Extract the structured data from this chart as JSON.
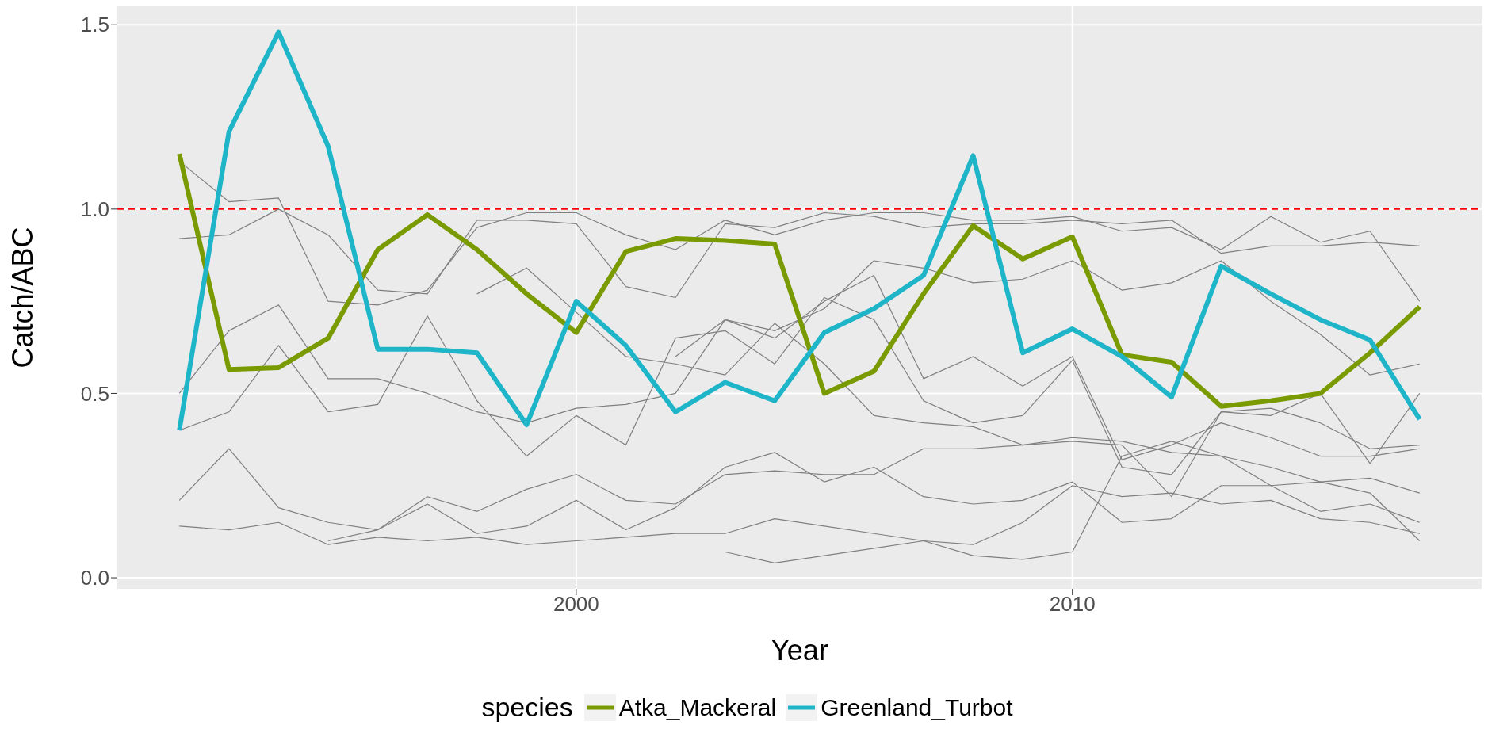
{
  "chart_data": {
    "type": "line",
    "xlabel": "Year",
    "ylabel": "Catch/ABC",
    "legend_title": "species",
    "legend": "bottom",
    "grid": true,
    "marker": "none",
    "x": [
      1992,
      1993,
      1994,
      1995,
      1996,
      1997,
      1998,
      1999,
      2000,
      2001,
      2002,
      2003,
      2004,
      2005,
      2006,
      2007,
      2008,
      2009,
      2010,
      2011,
      2012,
      2013,
      2014,
      2015,
      2016,
      2017
    ],
    "xlim": [
      1990.75,
      2018.25
    ],
    "xticks": [
      2000,
      2010
    ],
    "ylim": [
      -0.03,
      1.55
    ],
    "yticks": [
      {
        "value": 0,
        "label": "0.0"
      },
      {
        "value": 0.5,
        "label": "0.5"
      },
      {
        "value": 1,
        "label": "1.0"
      },
      {
        "value": 1.5,
        "label": "1.5"
      }
    ],
    "ref_lines": [
      {
        "axis": "y",
        "value": 1,
        "label": null,
        "color": "#ff0000",
        "line_style": "dashed"
      }
    ],
    "series": [
      {
        "color": "#7f7f7f",
        "values": [
          1.13,
          1.02,
          1.03,
          0.75,
          0.74,
          0.78,
          0.95,
          0.99,
          0.99,
          0.93,
          0.89,
          0.97,
          0.93,
          0.97,
          0.99,
          0.99,
          0.97,
          0.97,
          0.98,
          0.94,
          0.95,
          0.89,
          0.98,
          0.91,
          0.94,
          0.75
        ]
      },
      {
        "color": "#7f7f7f",
        "values": [
          0.92,
          0.93,
          1.0,
          0.93,
          0.78,
          0.77,
          0.97,
          0.97,
          0.96,
          0.79,
          0.76,
          0.96,
          0.95,
          0.99,
          0.98,
          0.95,
          0.96,
          0.96,
          0.97,
          0.96,
          0.97,
          0.88,
          0.9,
          0.9,
          0.91,
          0.9
        ]
      },
      {
        "color": "#7f7f7f",
        "values": [
          0.5,
          0.67,
          0.74,
          0.54,
          0.54,
          0.5,
          0.45,
          0.42,
          0.46,
          0.47,
          0.5,
          0.7,
          0.65,
          0.75,
          0.82,
          0.54,
          0.6,
          0.52,
          0.6,
          0.32,
          0.36,
          0.42,
          0.38,
          0.33,
          0.33,
          0.35
        ]
      },
      {
        "color": "#7f7f7f",
        "values": [
          0.4,
          0.45,
          0.63,
          0.45,
          0.47,
          0.71,
          0.48,
          0.33,
          0.44,
          0.36,
          0.65,
          0.67,
          0.58,
          0.76,
          0.7,
          0.48,
          0.42,
          0.44,
          0.59,
          0.3,
          0.28,
          0.45,
          0.44,
          0.5,
          0.31,
          0.5
        ]
      },
      {
        "color": "#7f7f7f",
        "values": [
          0.21,
          0.35,
          0.19,
          0.15,
          0.13,
          0.22,
          0.18,
          0.24,
          0.28,
          0.21,
          0.2,
          0.28,
          0.29,
          0.28,
          0.28,
          0.35,
          0.35,
          0.36,
          0.38,
          0.37,
          0.34,
          0.33,
          0.3,
          0.26,
          0.27,
          0.23
        ]
      },
      {
        "color": "#7f7f7f",
        "values": [
          0.14,
          0.13,
          0.15,
          0.09,
          0.11,
          0.1,
          0.11,
          0.09,
          0.1,
          0.11,
          0.12,
          0.12,
          0.16,
          0.14,
          0.12,
          0.1,
          0.09,
          0.15,
          0.25,
          0.22,
          0.23,
          0.2,
          0.21,
          0.16,
          0.15,
          0.12
        ]
      },
      {
        "color": "#7f7f7f",
        "values": [
          null,
          null,
          null,
          0.1,
          0.13,
          0.2,
          0.12,
          0.14,
          0.21,
          0.13,
          0.19,
          0.3,
          0.34,
          0.26,
          0.3,
          0.22,
          0.2,
          0.21,
          0.26,
          0.15,
          0.16,
          0.25,
          0.25,
          0.26,
          0.23,
          0.1
        ]
      },
      {
        "color": "#7f7f7f",
        "values": [
          null,
          null,
          null,
          null,
          null,
          null,
          null,
          null,
          null,
          null,
          null,
          0.07,
          0.04,
          0.06,
          0.08,
          0.1,
          0.06,
          0.05,
          0.07,
          0.33,
          0.37,
          0.33,
          0.25,
          0.18,
          0.2,
          0.15
        ]
      },
      {
        "color": "#7f7f7f",
        "values": [
          null,
          null,
          null,
          null,
          null,
          null,
          0.77,
          0.84,
          0.72,
          0.6,
          0.58,
          0.55,
          0.69,
          0.58,
          0.44,
          0.42,
          0.41,
          0.36,
          0.37,
          0.36,
          0.22,
          0.45,
          0.46,
          0.42,
          0.35,
          0.36
        ]
      },
      {
        "color": "#7f7f7f",
        "values": [
          null,
          null,
          null,
          null,
          null,
          null,
          null,
          null,
          null,
          null,
          0.6,
          0.7,
          0.67,
          0.73,
          0.86,
          0.84,
          0.8,
          0.81,
          0.86,
          0.78,
          0.8,
          0.86,
          0.75,
          0.66,
          0.55,
          0.58
        ]
      },
      {
        "name": "Atka_Mackeral",
        "color": "#7a9a01",
        "values": [
          1.15,
          0.565,
          0.57,
          0.65,
          0.89,
          0.985,
          0.89,
          0.77,
          0.665,
          0.885,
          0.92,
          0.915,
          0.905,
          0.5,
          0.56,
          0.77,
          0.955,
          0.865,
          0.925,
          0.605,
          0.585,
          0.465,
          0.48,
          0.5,
          0.61,
          0.735
        ]
      },
      {
        "name": "Greenland_Turbot",
        "color": "#1fb5c9",
        "values": [
          0.4,
          1.21,
          1.48,
          1.17,
          0.62,
          0.62,
          0.61,
          0.415,
          0.75,
          0.63,
          0.45,
          0.53,
          0.48,
          0.665,
          0.73,
          0.82,
          1.145,
          0.61,
          0.675,
          0.6,
          0.49,
          0.845,
          0.77,
          0.7,
          0.645,
          0.43
        ]
      }
    ]
  }
}
